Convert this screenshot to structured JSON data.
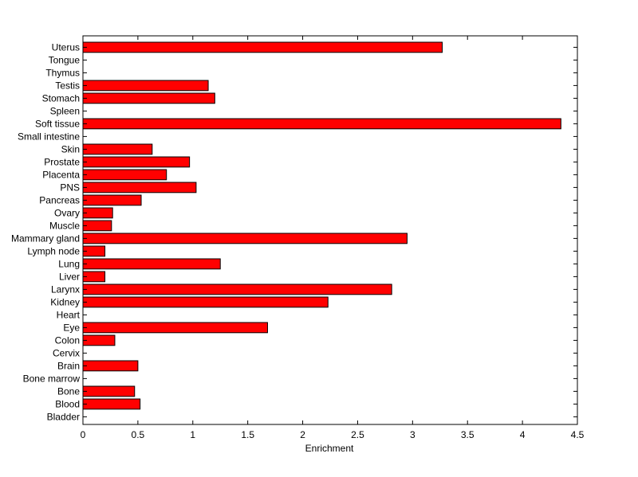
{
  "chart_data": {
    "type": "bar",
    "orientation": "horizontal",
    "categories": [
      "Bladder",
      "Blood",
      "Bone",
      "Bone marrow",
      "Brain",
      "Cervix",
      "Colon",
      "Eye",
      "Heart",
      "Kidney",
      "Larynx",
      "Liver",
      "Lung",
      "Lymph node",
      "Mammary gland",
      "Muscle",
      "Ovary",
      "Pancreas",
      "PNS",
      "Placenta",
      "Prostate",
      "Skin",
      "Small intestine",
      "Soft tissue",
      "Spleen",
      "Stomach",
      "Testis",
      "Thymus",
      "Tongue",
      "Uterus"
    ],
    "values": [
      0,
      0.52,
      0.47,
      0,
      0.5,
      0,
      0.29,
      1.68,
      0,
      2.23,
      2.81,
      0.2,
      1.25,
      0.2,
      2.95,
      0.26,
      0.27,
      0.53,
      1.03,
      0.76,
      0.97,
      0.63,
      0,
      4.35,
      0,
      1.2,
      1.14,
      0,
      0,
      3.27
    ],
    "title": "",
    "xlabel": "Enrichment",
    "ylabel": "",
    "xlim": [
      0,
      4.5
    ],
    "xticks": [
      "0",
      "0.5",
      "1",
      "1.5",
      "2",
      "2.5",
      "3",
      "3.5",
      "4",
      "4.5"
    ],
    "grid": false,
    "bar_color": "#ff0000",
    "bar_edge_color": "#000000"
  }
}
